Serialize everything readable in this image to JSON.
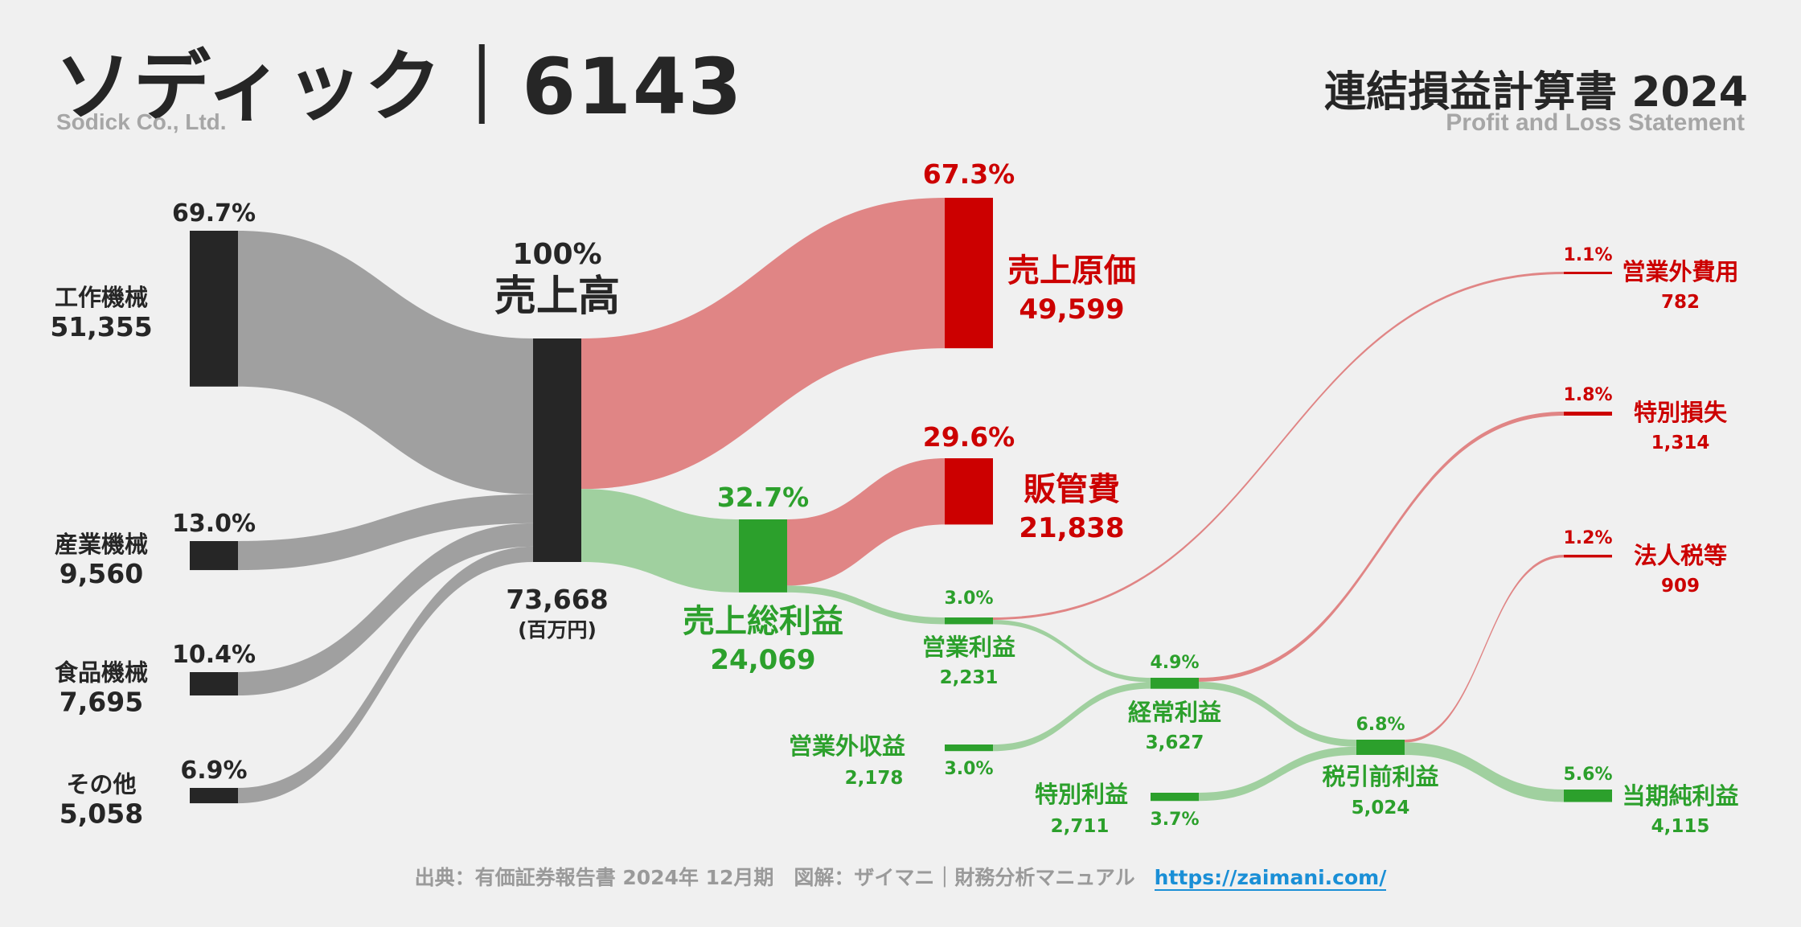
{
  "header": {
    "company": "ソディック｜6143",
    "company_en": "Sodick Co., Ltd.",
    "statement": "連結損益計算書 2024",
    "statement_en": "Profit and Loss Statement"
  },
  "footer": {
    "source": "出典：有価証券報告書 2024年 12月期　図解：ザイマニ｜財務分析マニュアル",
    "url": "https://zaimani.com/"
  },
  "colors": {
    "dark": "#262626",
    "grey_flow": "#a0a0a0",
    "red": "#cc0000",
    "red_flow": "#e08585",
    "green": "#2ca02c",
    "green_flow": "#a0d09f"
  },
  "chart_data": {
    "type": "sankey",
    "unit": "(百万円)",
    "segments": [
      {
        "name": "工作機械",
        "value": "51,355",
        "pct": "69.7%",
        "amount": 51355
      },
      {
        "name": "産業機械",
        "value": "9,560",
        "pct": "13.0%",
        "amount": 9560
      },
      {
        "name": "食品機械",
        "value": "7,695",
        "pct": "10.4%",
        "amount": 7695
      },
      {
        "name": "その他",
        "value": "5,058",
        "pct": "6.9%",
        "amount": 5058
      }
    ],
    "revenue": {
      "name": "売上高",
      "value": "73,668",
      "pct": "100%",
      "amount": 73668
    },
    "cost_of_sales": {
      "name": "売上原価",
      "value": "49,599",
      "pct": "67.3%",
      "amount": 49599
    },
    "gross_profit": {
      "name": "売上総利益",
      "value": "24,069",
      "pct": "32.7%",
      "amount": 24069
    },
    "sga": {
      "name": "販管費",
      "value": "21,838",
      "pct": "29.6%",
      "amount": 21838
    },
    "operating_profit": {
      "name": "営業利益",
      "value": "2,231",
      "pct": "3.0%",
      "amount": 2231
    },
    "non_operating_income": {
      "name": "営業外収益",
      "value": "2,178",
      "pct": "3.0%",
      "amount": 2178
    },
    "non_operating_expenses": {
      "name": "営業外費用",
      "value": "782",
      "pct": "1.1%",
      "amount": 782
    },
    "ordinary_profit": {
      "name": "経常利益",
      "value": "3,627",
      "pct": "4.9%",
      "amount": 3627
    },
    "extraordinary_income": {
      "name": "特別利益",
      "value": "2,711",
      "pct": "3.7%",
      "amount": 2711
    },
    "extraordinary_losses": {
      "name": "特別損失",
      "value": "1,314",
      "pct": "1.8%",
      "amount": 1314
    },
    "pretax_profit": {
      "name": "税引前利益",
      "value": "5,024",
      "pct": "6.8%",
      "amount": 5024
    },
    "income_taxes": {
      "name": "法人税等",
      "value": "909",
      "pct": "1.2%",
      "amount": 909
    },
    "net_profit": {
      "name": "当期純利益",
      "value": "4,115",
      "pct": "5.6%",
      "amount": 4115
    }
  }
}
